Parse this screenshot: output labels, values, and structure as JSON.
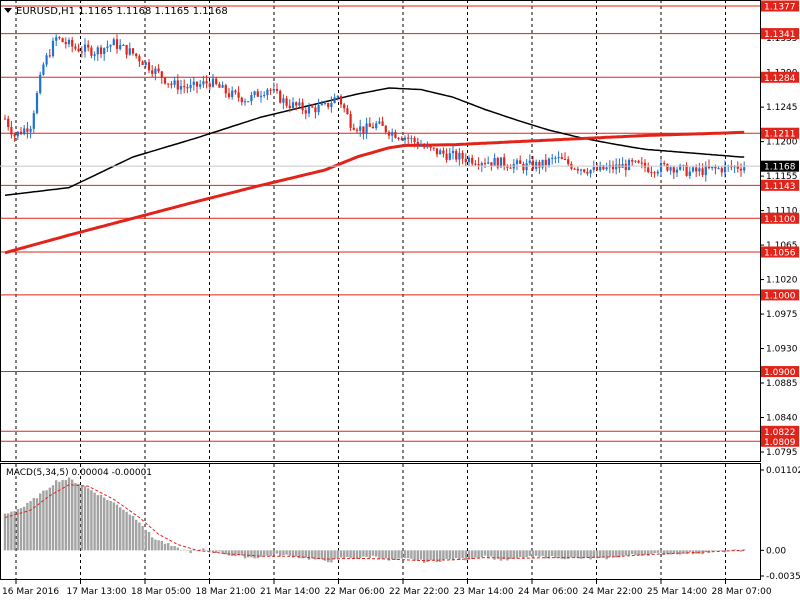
{
  "chart_data": {
    "type": "candlestick",
    "symbol_header": "EURUSD,H1  1.1165 1.1168 1.1165 1.1168",
    "price_range": [
      1.0795,
      1.1377
    ],
    "price_ticks": [
      "1.1335",
      "1.1290",
      "1.1245",
      "1.1200",
      "1.1155",
      "1.1110",
      "1.1065",
      "1.1020",
      "1.0975",
      "1.0930",
      "1.0885",
      "1.0840",
      "1.0795"
    ],
    "current_price": "1.1168",
    "current_price_value": 1.1168,
    "levels": [
      {
        "label": "1.1377",
        "value": 1.1377
      },
      {
        "label": "1.1341",
        "value": 1.1341
      },
      {
        "label": "1.1284",
        "value": 1.1284
      },
      {
        "label": "1.1211",
        "value": 1.1211
      },
      {
        "label": "1.1143",
        "value": 1.1143
      },
      {
        "label": "1.1100",
        "value": 1.11
      },
      {
        "label": "1.1056",
        "value": 1.1056
      },
      {
        "label": "1.1000",
        "value": 1.1
      },
      {
        "label": "1.0900",
        "value": 1.09
      },
      {
        "label": "1.0822",
        "value": 1.0822
      },
      {
        "label": "1.0809",
        "value": 1.0809
      }
    ],
    "time_labels": [
      "16 Mar 2016",
      "17 Mar 13:00",
      "18 Mar 05:00",
      "18 Mar 21:00",
      "21 Mar 14:00",
      "22 Mar 06:00",
      "22 Mar 22:00",
      "23 Mar 14:00",
      "24 Mar 06:00",
      "24 Mar 22:00",
      "25 Mar 14:00",
      "28 Mar 07:00"
    ],
    "close_anchors": [
      [
        0,
        1.123
      ],
      [
        3,
        1.1208
      ],
      [
        8,
        1.1222
      ],
      [
        12,
        1.13
      ],
      [
        16,
        1.1335
      ],
      [
        22,
        1.1322
      ],
      [
        28,
        1.1318
      ],
      [
        34,
        1.1328
      ],
      [
        40,
        1.1315
      ],
      [
        47,
        1.1292
      ],
      [
        52,
        1.1275
      ],
      [
        58,
        1.127
      ],
      [
        64,
        1.1278
      ],
      [
        70,
        1.1262
      ],
      [
        76,
        1.1255
      ],
      [
        82,
        1.127
      ],
      [
        88,
        1.125
      ],
      [
        94,
        1.1242
      ],
      [
        100,
        1.1245
      ],
      [
        104,
        1.126
      ],
      [
        108,
        1.1225
      ],
      [
        112,
        1.1215
      ],
      [
        116,
        1.1222
      ],
      [
        121,
        1.1212
      ],
      [
        126,
        1.1205
      ],
      [
        132,
        1.119
      ],
      [
        138,
        1.1183
      ],
      [
        144,
        1.1178
      ],
      [
        150,
        1.1175
      ],
      [
        156,
        1.1172
      ],
      [
        162,
        1.1168
      ],
      [
        168,
        1.117
      ],
      [
        172,
        1.1178
      ],
      [
        178,
        1.1168
      ],
      [
        184,
        1.1162
      ],
      [
        190,
        1.1166
      ],
      [
        196,
        1.117
      ],
      [
        202,
        1.1165
      ],
      [
        208,
        1.1168
      ],
      [
        214,
        1.116
      ],
      [
        218,
        1.1162
      ],
      [
        224,
        1.1165
      ],
      [
        230,
        1.1168
      ]
    ],
    "sma_slow": [
      [
        0,
        1.113
      ],
      [
        20,
        1.114
      ],
      [
        40,
        1.118
      ],
      [
        60,
        1.1205
      ],
      [
        80,
        1.1232
      ],
      [
        100,
        1.1252
      ],
      [
        110,
        1.1262
      ],
      [
        120,
        1.127
      ],
      [
        130,
        1.1268
      ],
      [
        140,
        1.1258
      ],
      [
        150,
        1.1242
      ],
      [
        160,
        1.1228
      ],
      [
        170,
        1.1215
      ],
      [
        180,
        1.1205
      ],
      [
        190,
        1.1197
      ],
      [
        200,
        1.119
      ],
      [
        215,
        1.1185
      ],
      [
        230,
        1.118
      ]
    ],
    "sma_red": [
      [
        0,
        1.1055
      ],
      [
        20,
        1.1078
      ],
      [
        40,
        1.11
      ],
      [
        60,
        1.1122
      ],
      [
        80,
        1.1143
      ],
      [
        100,
        1.1163
      ],
      [
        110,
        1.118
      ],
      [
        120,
        1.1192
      ],
      [
        125,
        1.1195
      ],
      [
        140,
        1.1196
      ],
      [
        160,
        1.12
      ],
      [
        180,
        1.1204
      ],
      [
        200,
        1.1208
      ],
      [
        230,
        1.1212
      ]
    ],
    "macd": {
      "title": "MACD(5,34,5) 0.00004 -0.00001",
      "ticks": [
        "0.01102",
        "0.00",
        "-0.00352"
      ],
      "range": [
        -0.00352,
        0.01102
      ],
      "bar_anchors": [
        [
          0,
          0.005
        ],
        [
          6,
          0.006
        ],
        [
          12,
          0.008
        ],
        [
          16,
          0.0095
        ],
        [
          20,
          0.0098
        ],
        [
          24,
          0.009
        ],
        [
          30,
          0.0075
        ],
        [
          36,
          0.006
        ],
        [
          42,
          0.004
        ],
        [
          46,
          0.0018
        ],
        [
          50,
          0.001
        ],
        [
          54,
          0.0002
        ],
        [
          58,
          -0.0002
        ],
        [
          62,
          0.0001
        ],
        [
          66,
          -0.0002
        ],
        [
          72,
          -0.0008
        ],
        [
          78,
          -0.001
        ],
        [
          84,
          -0.0006
        ],
        [
          90,
          -0.0008
        ],
        [
          96,
          -0.0012
        ],
        [
          102,
          -0.0015
        ],
        [
          106,
          -0.001
        ],
        [
          110,
          -0.0011
        ],
        [
          116,
          -0.0008
        ],
        [
          120,
          -0.0014
        ],
        [
          126,
          -0.0012
        ],
        [
          132,
          -0.0016
        ],
        [
          138,
          -0.0013
        ],
        [
          144,
          -0.0012
        ],
        [
          150,
          -0.0008
        ],
        [
          156,
          -0.0014
        ],
        [
          162,
          -0.001
        ],
        [
          168,
          -0.0009
        ],
        [
          174,
          -0.001
        ],
        [
          180,
          -0.0011
        ],
        [
          186,
          -0.0012
        ],
        [
          192,
          -0.0008
        ],
        [
          198,
          -0.0006
        ],
        [
          204,
          -0.0005
        ],
        [
          210,
          -0.0004
        ],
        [
          216,
          -0.0004
        ],
        [
          222,
          -0.0002
        ],
        [
          230,
          0.0
        ]
      ],
      "signal_anchors": [
        [
          0,
          0.0045
        ],
        [
          8,
          0.0055
        ],
        [
          14,
          0.0075
        ],
        [
          20,
          0.009
        ],
        [
          26,
          0.0088
        ],
        [
          34,
          0.007
        ],
        [
          42,
          0.0045
        ],
        [
          48,
          0.0022
        ],
        [
          54,
          0.0008
        ],
        [
          60,
          0.0
        ],
        [
          70,
          -0.0005
        ],
        [
          80,
          -0.0008
        ],
        [
          90,
          -0.0008
        ],
        [
          100,
          -0.0012
        ],
        [
          110,
          -0.0011
        ],
        [
          120,
          -0.0012
        ],
        [
          130,
          -0.0014
        ],
        [
          140,
          -0.0013
        ],
        [
          150,
          -0.001
        ],
        [
          160,
          -0.0011
        ],
        [
          170,
          -0.001
        ],
        [
          180,
          -0.001
        ],
        [
          190,
          -0.0009
        ],
        [
          200,
          -0.0006
        ],
        [
          210,
          -0.0004
        ],
        [
          220,
          -0.0002
        ],
        [
          230,
          0.0
        ]
      ]
    },
    "colors": {
      "bull": "#1e73d2",
      "bear": "#e2231a",
      "level": "#e2231a",
      "ma_slow": "#000000",
      "ma_fast": "#e2231a",
      "macd_bar": "#a3a3a3",
      "macd_signal": "#e2231a",
      "grid": "#000000",
      "tag_bg": "#e2231a",
      "current_bg": "#000000"
    }
  }
}
